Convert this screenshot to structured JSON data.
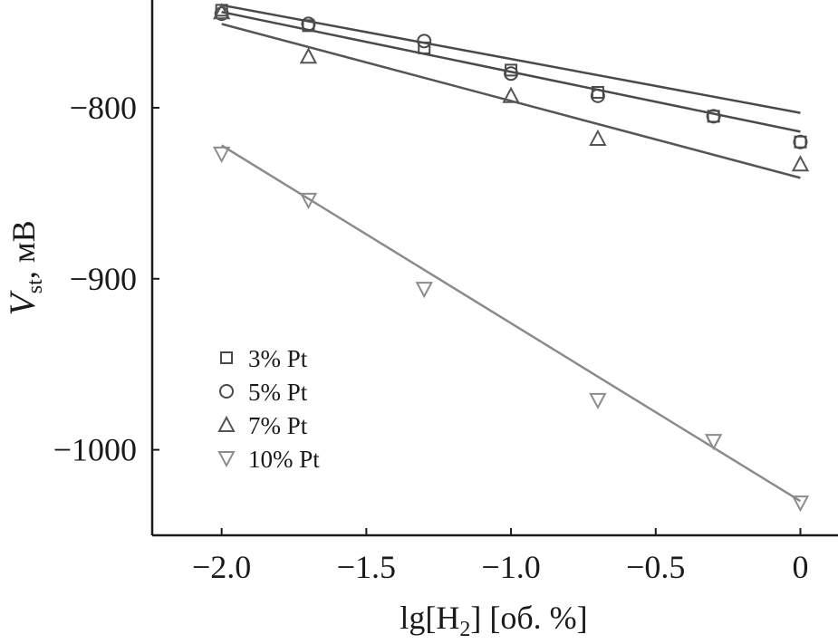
{
  "chart_data": {
    "type": "scatter",
    "xlabel": {
      "prefix": "lg[H",
      "subscript": "2",
      "suffix": "] [об. %]"
    },
    "ylabel": {
      "symbol": "V",
      "subscript": "st",
      "unit": ", мВ"
    },
    "xlim": [
      -2.24,
      0.13
    ],
    "ylim": [
      -1050,
      -737
    ],
    "xticks": [
      -2.0,
      -1.5,
      -1.0,
      -0.5,
      0
    ],
    "xtick_labels": [
      "−2.0",
      "−1.5",
      "−1.0",
      "−0.5",
      "0"
    ],
    "yticks": [
      -800,
      -900,
      -1000
    ],
    "ytick_labels": [
      "−800",
      "−900",
      "−1000"
    ],
    "grid": false,
    "legend_position": "bottom-left",
    "series": [
      {
        "name": "3% Pt",
        "marker": "square",
        "color": "#4a4a4a",
        "x": [
          -2.0,
          -1.7,
          -1.3,
          -1.0,
          -0.7,
          -0.3,
          0.0
        ],
        "y": [
          -743,
          -752,
          -765,
          -778,
          -791,
          -805,
          -820
        ],
        "fit": {
          "x": [
            -2.0,
            0.0
          ],
          "y": [
            -740,
            -803
          ]
        }
      },
      {
        "name": "5% Pt",
        "marker": "circle",
        "color": "#4a4a4a",
        "x": [
          -2.0,
          -1.7,
          -1.3,
          -1.0,
          -0.7,
          -0.3,
          0.0
        ],
        "y": [
          -745,
          -751,
          -761,
          -780,
          -793,
          -805,
          -820
        ],
        "fit": {
          "x": [
            -2.0,
            0.0
          ],
          "y": [
            -744,
            -814
          ]
        }
      },
      {
        "name": "7% Pt",
        "marker": "triangle-up",
        "color": "#555555",
        "x": [
          -2.0,
          -1.7,
          -1.0,
          -0.7,
          0.0
        ],
        "y": [
          -744,
          -770,
          -793,
          -818,
          -833
        ],
        "fit": {
          "x": [
            -2.0,
            0.0
          ],
          "y": [
            -751,
            -841
          ]
        }
      },
      {
        "name": "10% Pt",
        "marker": "triangle-down",
        "color": "#8c8c8c",
        "x": [
          -2.0,
          -1.7,
          -1.3,
          -0.7,
          -0.3,
          0.0
        ],
        "y": [
          -827,
          -854,
          -906,
          -971,
          -995,
          -1031
        ],
        "fit": {
          "x": [
            -2.0,
            0.0
          ],
          "y": [
            -822,
            -1030
          ]
        }
      }
    ]
  }
}
